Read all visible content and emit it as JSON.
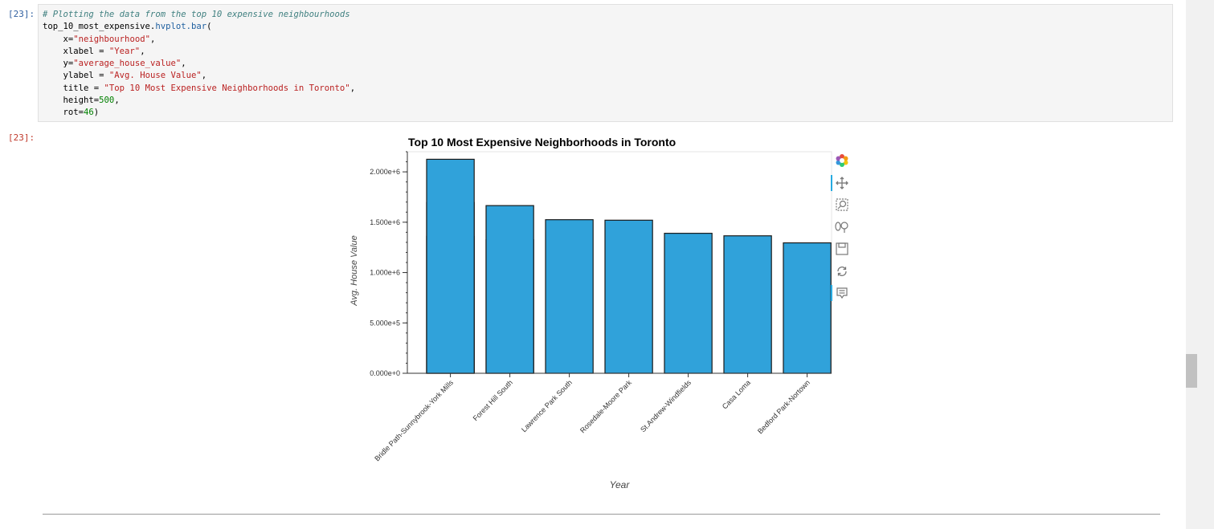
{
  "cells": {
    "input_prompt": "[23]:",
    "output_prompt": "[23]:",
    "code": {
      "comment": "# Plotting the data from the top 10 expensive neighbourhoods",
      "call_obj": "top_10_most_expensive.",
      "call_fn": "hvplot.bar",
      "call_open": "(",
      "x_kw": "x=",
      "x_val": "\"neighbourhood\"",
      "xlabel_kw": "xlabel = ",
      "xlabel_val": "\"Year\"",
      "y_kw": "y=",
      "y_val": "\"average_house_value\"",
      "ylabel_kw": "ylabel = ",
      "ylabel_val": "\"Avg. House Value\"",
      "title_kw": "title = ",
      "title_val": "\"Top 10 Most Expensive Neighborhoods in Toronto\"",
      "height_kw": "height=",
      "height_val": "500",
      "rot_kw": "rot=",
      "rot_val": "46",
      "close": ")"
    }
  },
  "chart_data": {
    "type": "bar",
    "title": "Top 10 Most Expensive Neighborhoods in Toronto",
    "xlabel": "Year",
    "ylabel": "Avg. House Value",
    "ylim": [
      0,
      2200000
    ],
    "yticks": [
      0,
      500000,
      1000000,
      1500000,
      2000000
    ],
    "ytick_labels": [
      "0.000e+0",
      "5.000e+5",
      "1.000e+6",
      "1.500e+6",
      "2.000e+6"
    ],
    "categories": [
      "Bridle Path-Sunnybrook-York Mills",
      "Forest Hill South",
      "Lawrence Park South",
      "Rosedale-Moore Park",
      "St.Andrew-Windfields",
      "Casa Loma",
      "Bedford Park-Nortown"
    ],
    "bars": [
      [
        1360000,
        1695000,
        2125000
      ],
      [
        1325000,
        1665000
      ],
      [
        1525000
      ],
      [
        1520000
      ],
      [
        1390000
      ],
      [
        1365000
      ],
      [
        1295000
      ]
    ],
    "bar_color": "#30a2da",
    "label_rotation_deg": 46,
    "grid": false,
    "legend": "none"
  },
  "toolbar": {
    "tools": [
      {
        "name": "bokeh-logo-icon",
        "active": false
      },
      {
        "name": "pan-icon",
        "active": true
      },
      {
        "name": "box-zoom-icon",
        "active": false
      },
      {
        "name": "wheel-zoom-icon",
        "active": false
      },
      {
        "name": "save-icon",
        "active": false
      },
      {
        "name": "reset-icon",
        "active": false
      },
      {
        "name": "hover-icon",
        "active": true
      }
    ]
  }
}
